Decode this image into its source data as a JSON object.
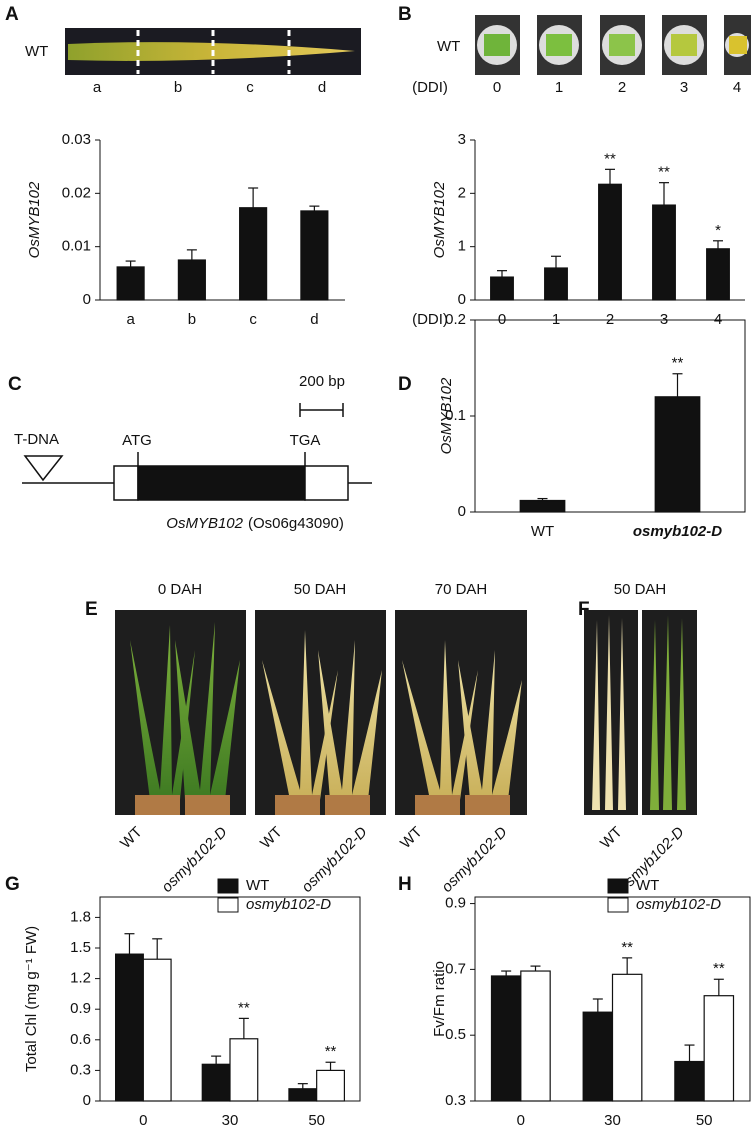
{
  "chart_data": [
    {
      "type": "bar",
      "panel": "A",
      "ylabel": "OsMYB102",
      "categories": [
        "a",
        "b",
        "c",
        "d"
      ],
      "series": [
        {
          "color": "#111111",
          "values": [
            0.0062,
            0.0075,
            0.0173,
            0.0167
          ],
          "errors": [
            0.0011,
            0.0019,
            0.0037,
            0.0009
          ]
        }
      ],
      "ylim": [
        0,
        0.03
      ],
      "yticks": [
        0,
        0.01,
        0.02,
        0.03
      ]
    },
    {
      "type": "bar",
      "panel": "B",
      "ylabel": "OsMYB102",
      "xlabel": "(DDI)",
      "categories": [
        "0",
        "1",
        "2",
        "3",
        "4"
      ],
      "series": [
        {
          "color": "#111111",
          "values": [
            0.43,
            0.6,
            2.17,
            1.78,
            0.96
          ],
          "errors": [
            0.12,
            0.22,
            0.28,
            0.42,
            0.15
          ],
          "annotations": [
            null,
            null,
            "**",
            "**",
            "*"
          ]
        }
      ],
      "ylim": [
        0,
        3
      ],
      "yticks": [
        0,
        1,
        2,
        3
      ]
    },
    {
      "type": "bar",
      "panel": "D",
      "ylabel": "OsMYB102",
      "categories": [
        "WT",
        "osmyb102-D"
      ],
      "box": true,
      "series": [
        {
          "color": "#111111",
          "values": [
            0.012,
            0.12
          ],
          "errors": [
            0.002,
            0.024
          ],
          "annotations": [
            null,
            "**"
          ]
        }
      ],
      "ylim": [
        0,
        0.2
      ],
      "yticks": [
        0,
        0.1,
        0.2
      ]
    },
    {
      "type": "bar",
      "panel": "G",
      "ylabel": "Total Chl (mg g⁻¹ FW)",
      "categories": [
        "0",
        "30",
        "50"
      ],
      "box": true,
      "legend": "upper right",
      "series": [
        {
          "name": "WT",
          "color": "#111111",
          "values": [
            1.44,
            0.36,
            0.12
          ],
          "errors": [
            0.2,
            0.08,
            0.05
          ]
        },
        {
          "name": "osmyb102-D",
          "color": "#ffffff",
          "values": [
            1.39,
            0.61,
            0.3
          ],
          "errors": [
            0.2,
            0.2,
            0.08
          ],
          "annotations": [
            null,
            "**",
            "**"
          ]
        }
      ],
      "ylim": [
        0,
        2.0
      ],
      "yticks": [
        0,
        0.3,
        0.6,
        0.9,
        1.2,
        1.5,
        1.8
      ]
    },
    {
      "type": "bar",
      "panel": "H",
      "ylabel": "Fv/Fm ratio",
      "categories": [
        "0",
        "30",
        "50"
      ],
      "box": true,
      "legend": "upper right",
      "series": [
        {
          "name": "WT",
          "color": "#111111",
          "values": [
            0.68,
            0.57,
            0.42
          ],
          "errors": [
            0.015,
            0.04,
            0.05
          ]
        },
        {
          "name": "osmyb102-D",
          "color": "#ffffff",
          "values": [
            0.695,
            0.685,
            0.62
          ],
          "errors": [
            0.015,
            0.05,
            0.05
          ],
          "annotations": [
            null,
            "**",
            "**"
          ]
        }
      ],
      "ylim": [
        0.3,
        0.92
      ],
      "yticks": [
        0.3,
        0.5,
        0.7,
        0.9
      ]
    }
  ],
  "panel_a": {
    "genotype": "WT",
    "segments": [
      "a",
      "b",
      "c",
      "d"
    ]
  },
  "panel_b": {
    "genotype": "WT",
    "xlabel": "(DDI)",
    "days": [
      "0",
      "1",
      "2",
      "3",
      "4"
    ]
  },
  "panel_c": {
    "label": "C",
    "scale": "200 bp",
    "insertion": "T-DNA",
    "start": "ATG",
    "stop": "TGA",
    "gene_name": "OsMYB102",
    "gene_id": "(Os06g43090)"
  },
  "panel_e": {
    "label": "E",
    "times": [
      "0 DAH",
      "50 DAH",
      "70 DAH"
    ],
    "genotypes": [
      "WT",
      "osmyb102-D"
    ]
  },
  "panel_f": {
    "label": "F",
    "time": "50 DAH",
    "genotypes": [
      "WT",
      "osmyb102-D"
    ]
  }
}
